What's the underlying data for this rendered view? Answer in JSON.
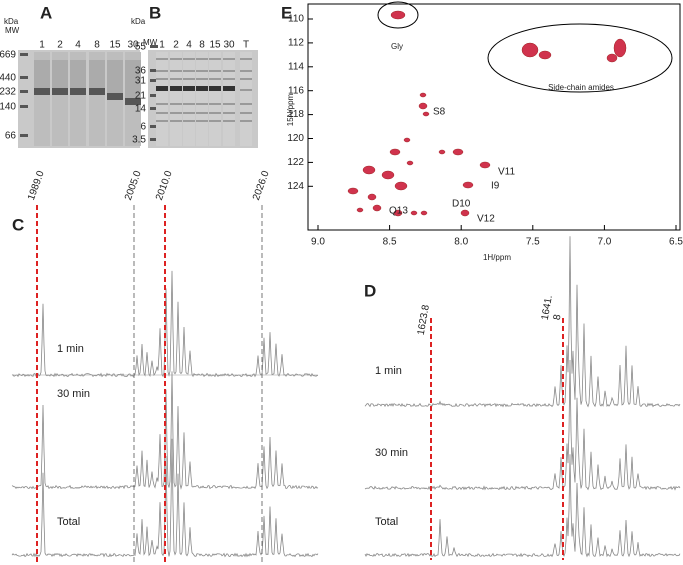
{
  "panels": {
    "A": {
      "label": "A",
      "unit": "kDa",
      "mw_header": "MW",
      "markers": [
        "669",
        "440",
        "232",
        "140",
        "66"
      ],
      "lanes": [
        "1",
        "2",
        "4",
        "8",
        "15",
        "30"
      ]
    },
    "B": {
      "label": "B",
      "unit": "kDa",
      "mw_header": "MW",
      "markers": [
        "55",
        "36",
        "31",
        "21",
        "14",
        "6",
        "3.5"
      ],
      "lanes": [
        "1",
        "2",
        "4",
        "8",
        "15",
        "30",
        "T"
      ]
    },
    "E": {
      "label": "E",
      "y_axis_label": "15N/ppm",
      "x_axis_label": "1H/ppm",
      "yticks": [
        "110",
        "112",
        "114",
        "116",
        "118",
        "120",
        "122",
        "124"
      ],
      "xticks": [
        "9.0",
        "8.5",
        "8.0",
        "7.5",
        "7.0",
        "6.5"
      ],
      "annotations": [
        "Gly",
        "Side-chain amides",
        "S8",
        "V11",
        "I9",
        "D10",
        "Q13",
        "V12"
      ]
    },
    "C": {
      "label": "C",
      "peaks": [
        "1989.0",
        "2005.0",
        "2010.0",
        "2026.0"
      ],
      "traces": [
        "1 min",
        "30 min",
        "Total"
      ]
    },
    "D": {
      "label": "D",
      "peaks": [
        [
          "1623.8"
        ],
        [
          "1641.",
          "8"
        ]
      ],
      "traces": [
        "1 min",
        "30 min",
        "Total"
      ]
    }
  }
}
